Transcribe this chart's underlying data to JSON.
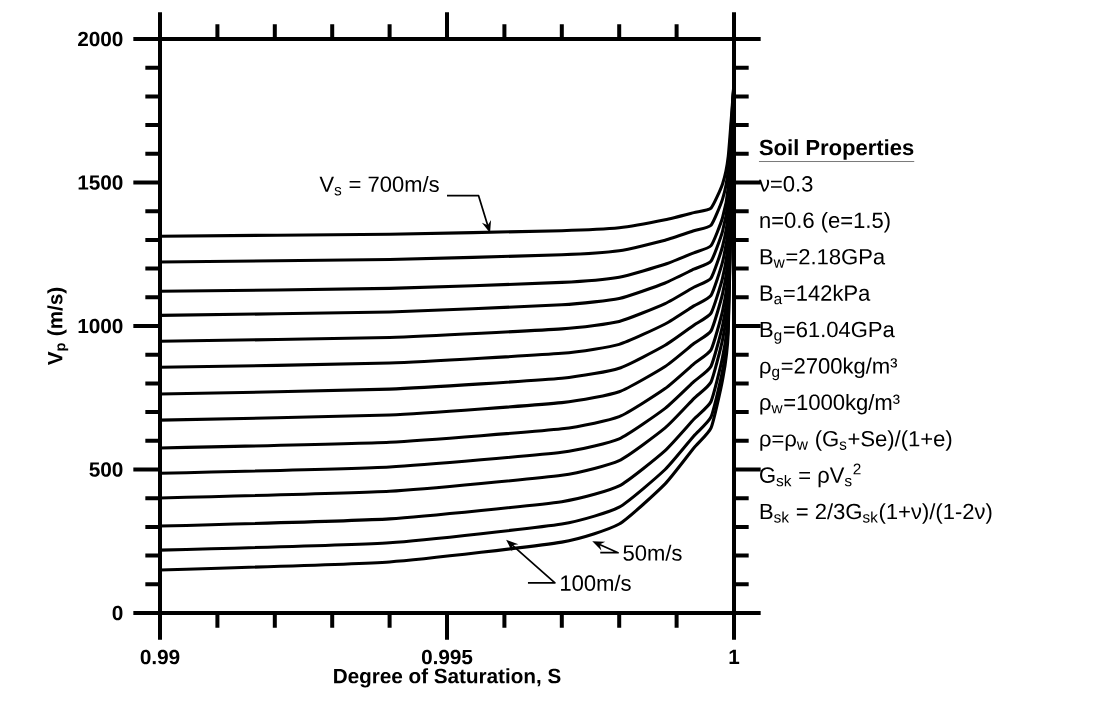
{
  "chart_data": {
    "type": "line",
    "xlabel": "Degree of Saturation, S",
    "ylabel": "V$_{p}$ (m/s)",
    "x": [
      0.99,
      0.994,
      0.997,
      0.998,
      0.9988,
      0.9993,
      0.9996,
      0.9998,
      0.9999,
      1.0
    ],
    "series": [
      {
        "color": "#000000",
        "values": [
          150,
          178,
          247,
          310,
          450,
          575,
          645,
          812,
          979,
          1850
        ]
      },
      {
        "color": "#000000",
        "values": [
          219,
          245,
          310,
          369,
          500,
          617,
          683,
          844,
          1006,
          1850
        ]
      },
      {
        "color": "#000000",
        "values": [
          303,
          328,
          388,
          443,
          566,
          675,
          737,
          891,
          1047,
          1850
        ]
      },
      {
        "color": "#000000",
        "values": [
          401,
          424,
          480,
          531,
          645,
          747,
          805,
          952,
          1103,
          1850
        ]
      },
      {
        "color": "#000000",
        "values": [
          487,
          509,
          560,
          607,
          713,
          806,
          860,
          1001,
          1147,
          1850
        ]
      },
      {
        "color": "#000000",
        "values": [
          575,
          595,
          642,
          684,
          782,
          868,
          917,
          1052,
          1192,
          1850
        ]
      },
      {
        "color": "#000000",
        "values": [
          672,
          690,
          733,
          771,
          859,
          939,
          983,
          1112,
          1247,
          1850
        ]
      },
      {
        "color": "#000000",
        "values": [
          763,
          780,
          818,
          853,
          933,
          1003,
          1045,
          1167,
          1296,
          1850
        ]
      },
      {
        "color": "#000000",
        "values": [
          856,
          871,
          905,
          936,
          1007,
          1070,
          1107,
          1223,
          1347,
          1850
        ]
      },
      {
        "color": "#000000",
        "values": [
          947,
          960,
          990,
          1016,
          1078,
          1135,
          1167,
          1277,
          1395,
          1850
        ]
      },
      {
        "color": "#000000",
        "values": [
          1037,
          1049,
          1074,
          1096,
          1150,
          1198,
          1226,
          1330,
          1443,
          1850
        ]
      },
      {
        "color": "#000000",
        "values": [
          1121,
          1131,
          1152,
          1170,
          1215,
          1255,
          1280,
          1377,
          1485,
          1850
        ]
      },
      {
        "color": "#000000",
        "values": [
          1223,
          1232,
          1248,
          1262,
          1299,
          1332,
          1351,
          1442,
          1545,
          1850
        ]
      },
      {
        "color": "#000000",
        "values": [
          1313,
          1320,
          1332,
          1342,
          1370,
          1395,
          1411,
          1495,
          1592,
          1850
        ]
      }
    ],
    "xlim": [
      0.99,
      1.0
    ],
    "ylim": [
      0,
      2000
    ],
    "xticks": [
      0.99,
      0.995,
      1
    ],
    "yticks": [
      0,
      500,
      1000,
      1500,
      2000
    ],
    "marker": "none",
    "line_style": "solid",
    "annotations": [
      {
        "text": "V$_{s}$ = 700m/s",
        "x": 0.99575,
        "y": 1324
      },
      "50m/s",
      "100m/s",
      "Soil Properties",
      "ν=0.3",
      "n=0.6 (e=1.5)",
      "B$_{w}$=2.18GPa",
      "B$_{a}$=142kPa",
      "B$_{g}$=61.04GPa",
      "ρ$_{g}$=2700kg/m³",
      "ρ$_{w}$=1000kg/m³",
      "ρ=ρ$_{w}$ (G$_{s}$+Se)/(1+e)",
      "G$_{sk}$ = ρV$_{s}$$^{2}$",
      "B$_{sk}$ = 2/3G$_{sk}$(1+ν)/(1-2ν)"
    ]
  }
}
